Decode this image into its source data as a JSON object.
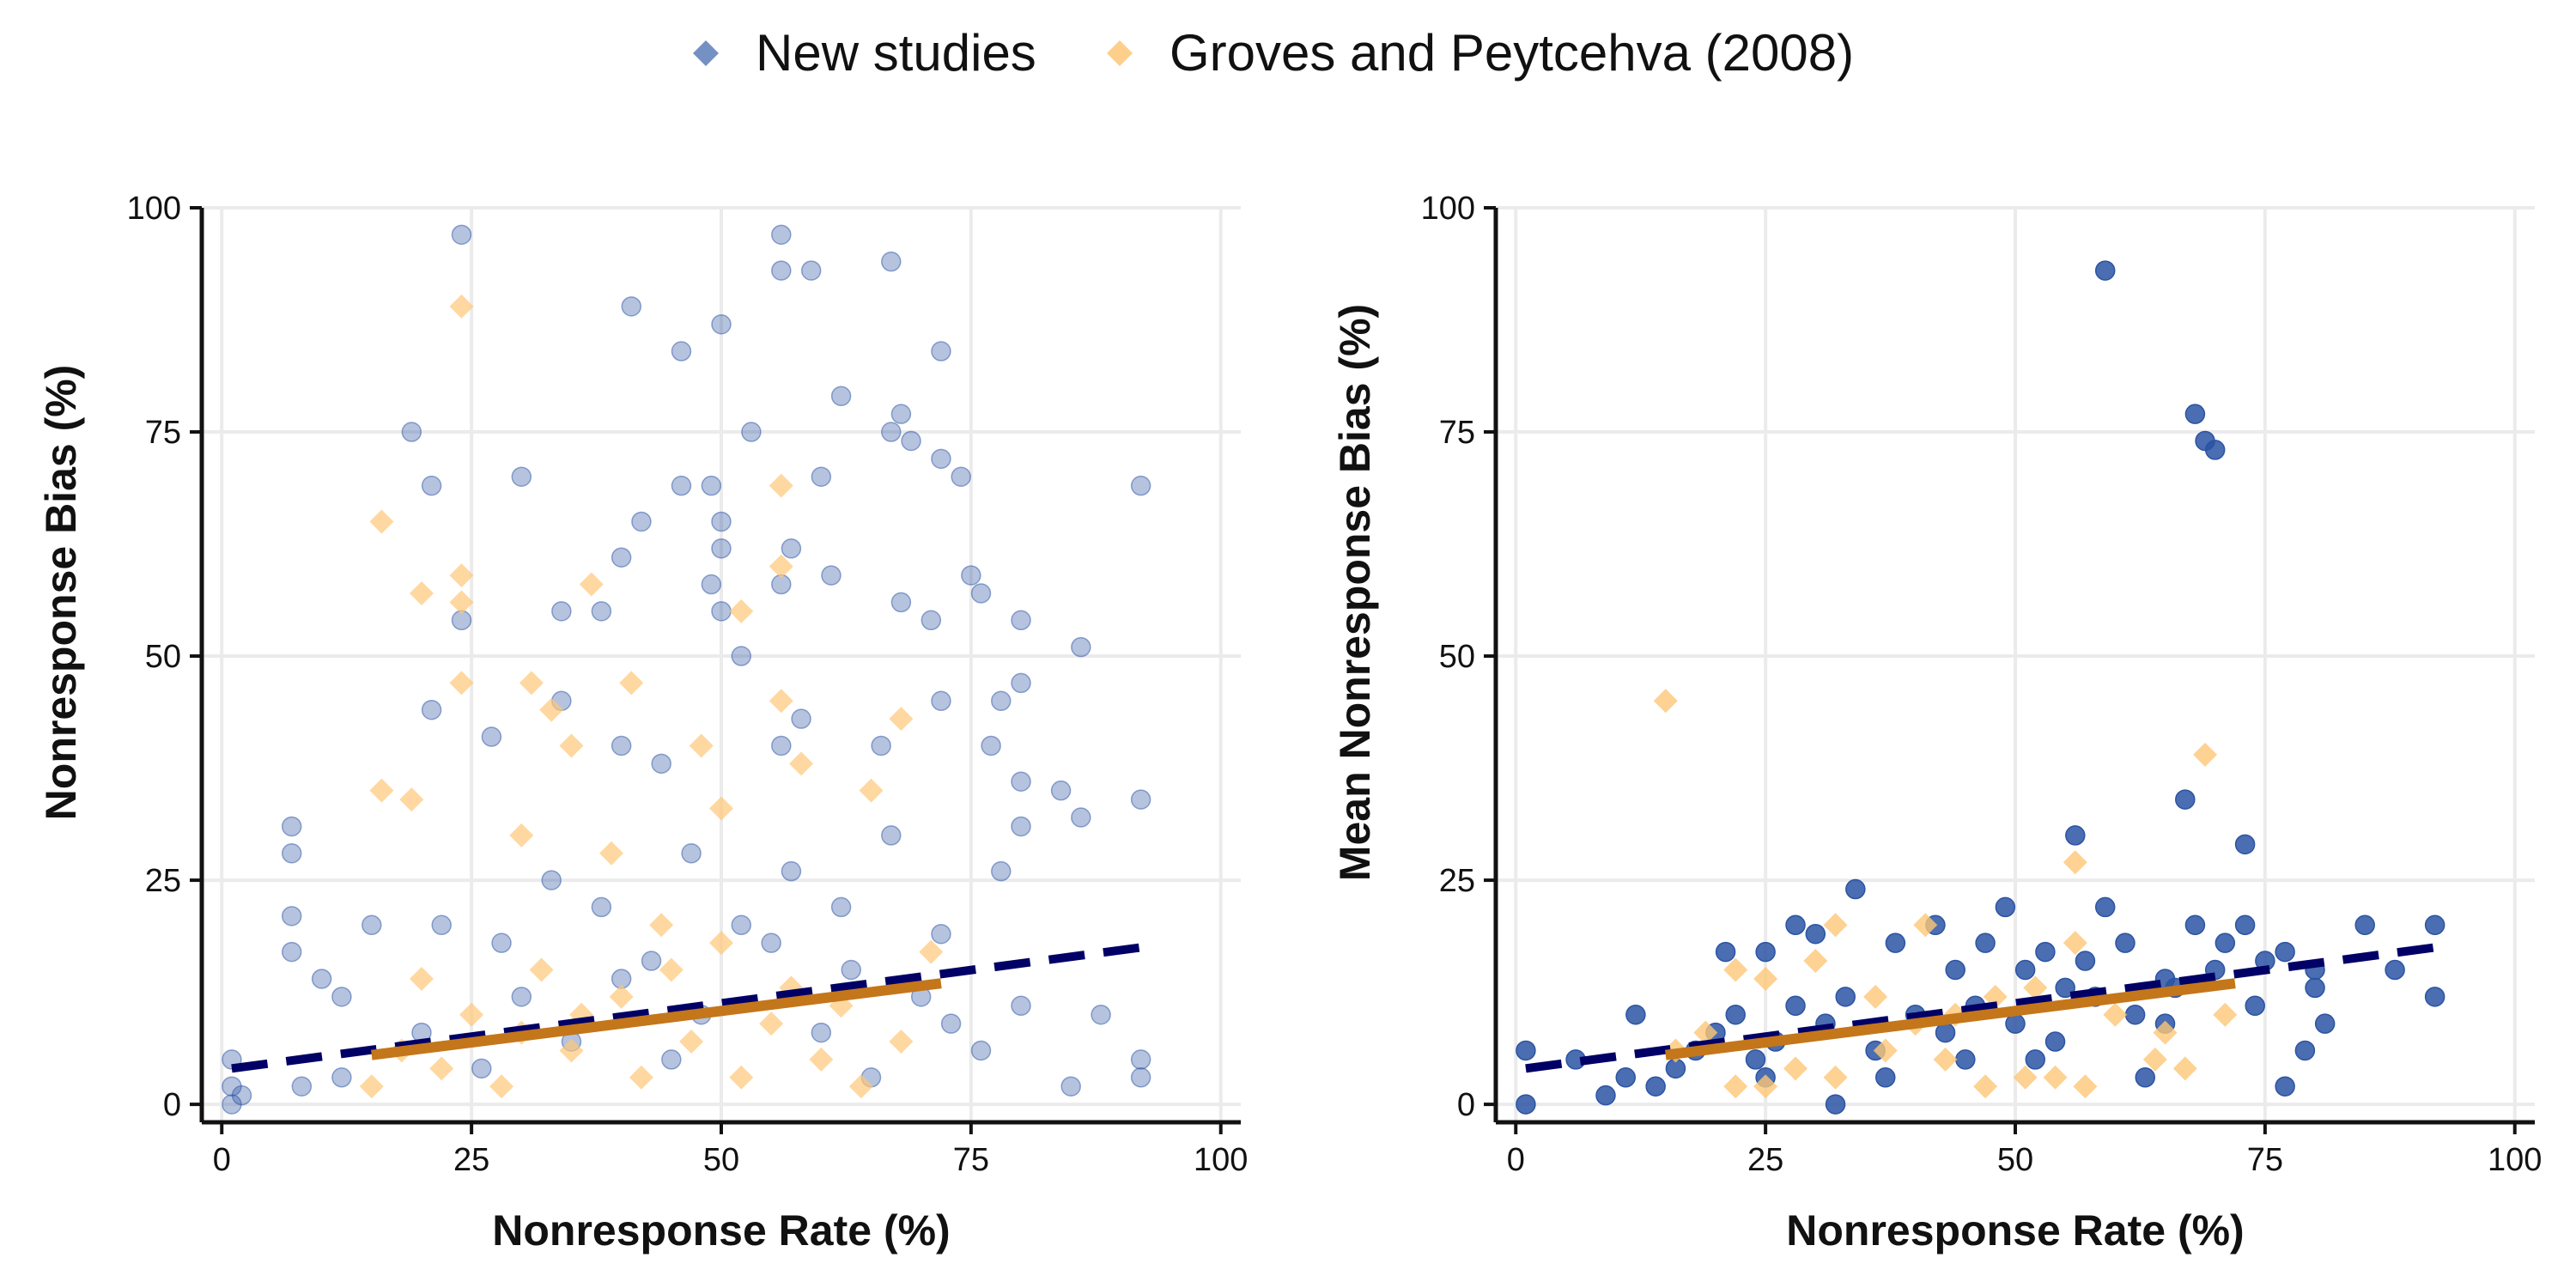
{
  "colors": {
    "new": "#2b54a3",
    "gp": "#fdc777",
    "trend_new": "#000066",
    "trend_gp": "#c4761a"
  },
  "legend": [
    {
      "key": "new",
      "label": "New studies"
    },
    {
      "key": "gp",
      "label": "Groves and Peytcehva (2008)"
    }
  ],
  "chart_data": [
    {
      "type": "scatter",
      "xlabel": "Nonresponse Rate (%)",
      "ylabel": "Nonresponse Bias (%)",
      "xlim": [
        -2,
        102
      ],
      "ylim": [
        -2,
        100
      ],
      "xticks": [
        0,
        25,
        50,
        75,
        100
      ],
      "yticks": [
        0,
        25,
        50,
        75,
        100
      ],
      "grid": true,
      "legend_position": "top",
      "series": [
        {
          "key": "new",
          "name": "New studies",
          "marker": "circle",
          "opacity": 0.35,
          "points": [
            [
              24,
              97
            ],
            [
              56,
              97
            ],
            [
              56,
              93
            ],
            [
              59,
              93
            ],
            [
              67,
              94
            ],
            [
              41,
              89
            ],
            [
              50,
              87
            ],
            [
              46,
              84
            ],
            [
              72,
              84
            ],
            [
              62,
              79
            ],
            [
              68,
              77
            ],
            [
              67,
              75
            ],
            [
              69,
              74
            ],
            [
              72,
              72
            ],
            [
              19,
              75
            ],
            [
              53,
              75
            ],
            [
              21,
              69
            ],
            [
              30,
              70
            ],
            [
              46,
              69
            ],
            [
              60,
              70
            ],
            [
              74,
              70
            ],
            [
              49,
              69
            ],
            [
              92,
              69
            ],
            [
              50,
              65
            ],
            [
              42,
              65
            ],
            [
              40,
              61
            ],
            [
              50,
              62
            ],
            [
              57,
              62
            ],
            [
              49,
              58
            ],
            [
              61,
              59
            ],
            [
              56,
              58
            ],
            [
              75,
              59
            ],
            [
              76,
              57
            ],
            [
              68,
              56
            ],
            [
              34,
              55
            ],
            [
              38,
              55
            ],
            [
              50,
              55
            ],
            [
              71,
              54
            ],
            [
              80,
              54
            ],
            [
              24,
              54
            ],
            [
              86,
              51
            ],
            [
              52,
              50
            ],
            [
              80,
              47
            ],
            [
              21,
              44
            ],
            [
              34,
              45
            ],
            [
              58,
              43
            ],
            [
              72,
              45
            ],
            [
              78,
              45
            ],
            [
              40,
              40
            ],
            [
              56,
              40
            ],
            [
              66,
              40
            ],
            [
              77,
              40
            ],
            [
              27,
              41
            ],
            [
              44,
              38
            ],
            [
              84,
              35
            ],
            [
              86,
              32
            ],
            [
              92,
              34
            ],
            [
              7,
              31
            ],
            [
              7,
              28
            ],
            [
              7,
              21
            ],
            [
              15,
              20
            ],
            [
              7,
              17
            ],
            [
              10,
              14
            ],
            [
              12,
              12
            ],
            [
              80,
              36
            ],
            [
              80,
              31
            ],
            [
              88,
              10
            ],
            [
              92,
              5
            ],
            [
              92,
              3
            ],
            [
              1,
              5
            ],
            [
              1,
              2
            ],
            [
              2,
              1
            ],
            [
              1,
              0
            ],
            [
              8,
              2
            ],
            [
              12,
              3
            ],
            [
              20,
              8
            ],
            [
              26,
              4
            ],
            [
              30,
              12
            ],
            [
              35,
              7
            ],
            [
              40,
              14
            ],
            [
              45,
              5
            ],
            [
              48,
              10
            ],
            [
              55,
              18
            ],
            [
              60,
              8
            ],
            [
              63,
              15
            ],
            [
              65,
              3
            ],
            [
              70,
              12
            ],
            [
              73,
              9
            ],
            [
              76,
              6
            ],
            [
              80,
              11
            ],
            [
              85,
              2
            ],
            [
              22,
              20
            ],
            [
              28,
              18
            ],
            [
              33,
              25
            ],
            [
              38,
              22
            ],
            [
              43,
              16
            ],
            [
              47,
              28
            ],
            [
              52,
              20
            ],
            [
              57,
              26
            ],
            [
              62,
              22
            ],
            [
              67,
              30
            ],
            [
              72,
              19
            ],
            [
              78,
              26
            ]
          ]
        },
        {
          "key": "gp",
          "name": "Groves and Peytcehva (2008)",
          "marker": "diamond",
          "opacity": 0.7,
          "points": [
            [
              24,
              89
            ],
            [
              56,
              69
            ],
            [
              16,
              65
            ],
            [
              20,
              57
            ],
            [
              24,
              59
            ],
            [
              24,
              56
            ],
            [
              37,
              58
            ],
            [
              56,
              60
            ],
            [
              52,
              55
            ],
            [
              24,
              47
            ],
            [
              31,
              47
            ],
            [
              41,
              47
            ],
            [
              33,
              44
            ],
            [
              35,
              40
            ],
            [
              48,
              40
            ],
            [
              16,
              35
            ],
            [
              19,
              34
            ],
            [
              39,
              28
            ],
            [
              56,
              45
            ],
            [
              30,
              30
            ],
            [
              44,
              20
            ],
            [
              50,
              33
            ],
            [
              58,
              38
            ],
            [
              65,
              35
            ],
            [
              68,
              43
            ],
            [
              20,
              14
            ],
            [
              25,
              10
            ],
            [
              30,
              8
            ],
            [
              35,
              6
            ],
            [
              40,
              12
            ],
            [
              45,
              15
            ],
            [
              50,
              18
            ],
            [
              55,
              9
            ],
            [
              60,
              5
            ],
            [
              62,
              11
            ],
            [
              68,
              7
            ],
            [
              71,
              17
            ],
            [
              15,
              2
            ],
            [
              18,
              6
            ],
            [
              22,
              4
            ],
            [
              28,
              2
            ],
            [
              32,
              15
            ],
            [
              36,
              10
            ],
            [
              42,
              3
            ],
            [
              47,
              7
            ],
            [
              52,
              3
            ],
            [
              57,
              13
            ],
            [
              64,
              2
            ]
          ]
        }
      ],
      "trends": [
        {
          "key": "new",
          "style": "dashed",
          "x": [
            1,
            92
          ],
          "y": [
            4,
            17.5
          ]
        },
        {
          "key": "gp",
          "style": "solid",
          "x": [
            15,
            72
          ],
          "y": [
            5.5,
            13.5
          ]
        }
      ]
    },
    {
      "type": "scatter",
      "xlabel": "Nonresponse Rate (%)",
      "ylabel": "Mean Nonresponse Bias (%)",
      "xlim": [
        -2,
        102
      ],
      "ylim": [
        -2,
        100
      ],
      "xticks": [
        0,
        25,
        50,
        75,
        100
      ],
      "yticks": [
        0,
        25,
        50,
        75,
        100
      ],
      "grid": true,
      "series": [
        {
          "key": "new",
          "name": "New studies",
          "marker": "circle",
          "opacity": 0.85,
          "points": [
            [
              59,
              93
            ],
            [
              68,
              77
            ],
            [
              69,
              74
            ],
            [
              70,
              73
            ],
            [
              67,
              34
            ],
            [
              56,
              30
            ],
            [
              73,
              29
            ],
            [
              34,
              24
            ],
            [
              49,
              22
            ],
            [
              59,
              22
            ],
            [
              68,
              20
            ],
            [
              73,
              20
            ],
            [
              85,
              20
            ],
            [
              92,
              20
            ],
            [
              28,
              20
            ],
            [
              30,
              19
            ],
            [
              42,
              20
            ],
            [
              47,
              18
            ],
            [
              53,
              17
            ],
            [
              61,
              18
            ],
            [
              71,
              18
            ],
            [
              75,
              16
            ],
            [
              77,
              17
            ],
            [
              80,
              15
            ],
            [
              88,
              15
            ],
            [
              21,
              17
            ],
            [
              25,
              17
            ],
            [
              38,
              18
            ],
            [
              44,
              15
            ],
            [
              51,
              15
            ],
            [
              57,
              16
            ],
            [
              65,
              14
            ],
            [
              80,
              13
            ],
            [
              1,
              6
            ],
            [
              1,
              0
            ],
            [
              6,
              5
            ],
            [
              9,
              1
            ],
            [
              11,
              3
            ],
            [
              12,
              10
            ],
            [
              14,
              2
            ],
            [
              16,
              4
            ],
            [
              18,
              6
            ],
            [
              20,
              8
            ],
            [
              22,
              10
            ],
            [
              24,
              5
            ],
            [
              26,
              7
            ],
            [
              28,
              11
            ],
            [
              31,
              9
            ],
            [
              33,
              12
            ],
            [
              36,
              6
            ],
            [
              40,
              10
            ],
            [
              43,
              8
            ],
            [
              46,
              11
            ],
            [
              50,
              9
            ],
            [
              54,
              7
            ],
            [
              58,
              12
            ],
            [
              62,
              10
            ],
            [
              66,
              13
            ],
            [
              70,
              15
            ],
            [
              74,
              11
            ],
            [
              77,
              2
            ],
            [
              79,
              6
            ],
            [
              81,
              9
            ],
            [
              92,
              12
            ],
            [
              32,
              0
            ],
            [
              45,
              5
            ],
            [
              52,
              5
            ],
            [
              63,
              3
            ],
            [
              25,
              3
            ],
            [
              37,
              3
            ],
            [
              55,
              13
            ],
            [
              65,
              9
            ]
          ]
        },
        {
          "key": "gp",
          "name": "Groves and Peytcehva (2008)",
          "marker": "diamond",
          "opacity": 0.8,
          "points": [
            [
              15,
              45
            ],
            [
              69,
              39
            ],
            [
              56,
              27
            ],
            [
              41,
              20
            ],
            [
              32,
              20
            ],
            [
              22,
              15
            ],
            [
              25,
              14
            ],
            [
              30,
              16
            ],
            [
              36,
              12
            ],
            [
              40,
              9
            ],
            [
              44,
              10
            ],
            [
              48,
              12
            ],
            [
              52,
              13
            ],
            [
              56,
              18
            ],
            [
              60,
              10
            ],
            [
              65,
              8
            ],
            [
              71,
              10
            ],
            [
              16,
              6
            ],
            [
              19,
              8
            ],
            [
              22,
              2
            ],
            [
              25,
              2
            ],
            [
              28,
              4
            ],
            [
              32,
              3
            ],
            [
              37,
              6
            ],
            [
              43,
              5
            ],
            [
              47,
              2
            ],
            [
              51,
              3
            ],
            [
              54,
              3
            ],
            [
              57,
              2
            ],
            [
              64,
              5
            ],
            [
              67,
              4
            ]
          ]
        }
      ],
      "trends": [
        {
          "key": "new",
          "style": "dashed",
          "x": [
            1,
            92
          ],
          "y": [
            4,
            17.5
          ]
        },
        {
          "key": "gp",
          "style": "solid",
          "x": [
            15,
            72
          ],
          "y": [
            5.5,
            13.5
          ]
        }
      ]
    }
  ]
}
